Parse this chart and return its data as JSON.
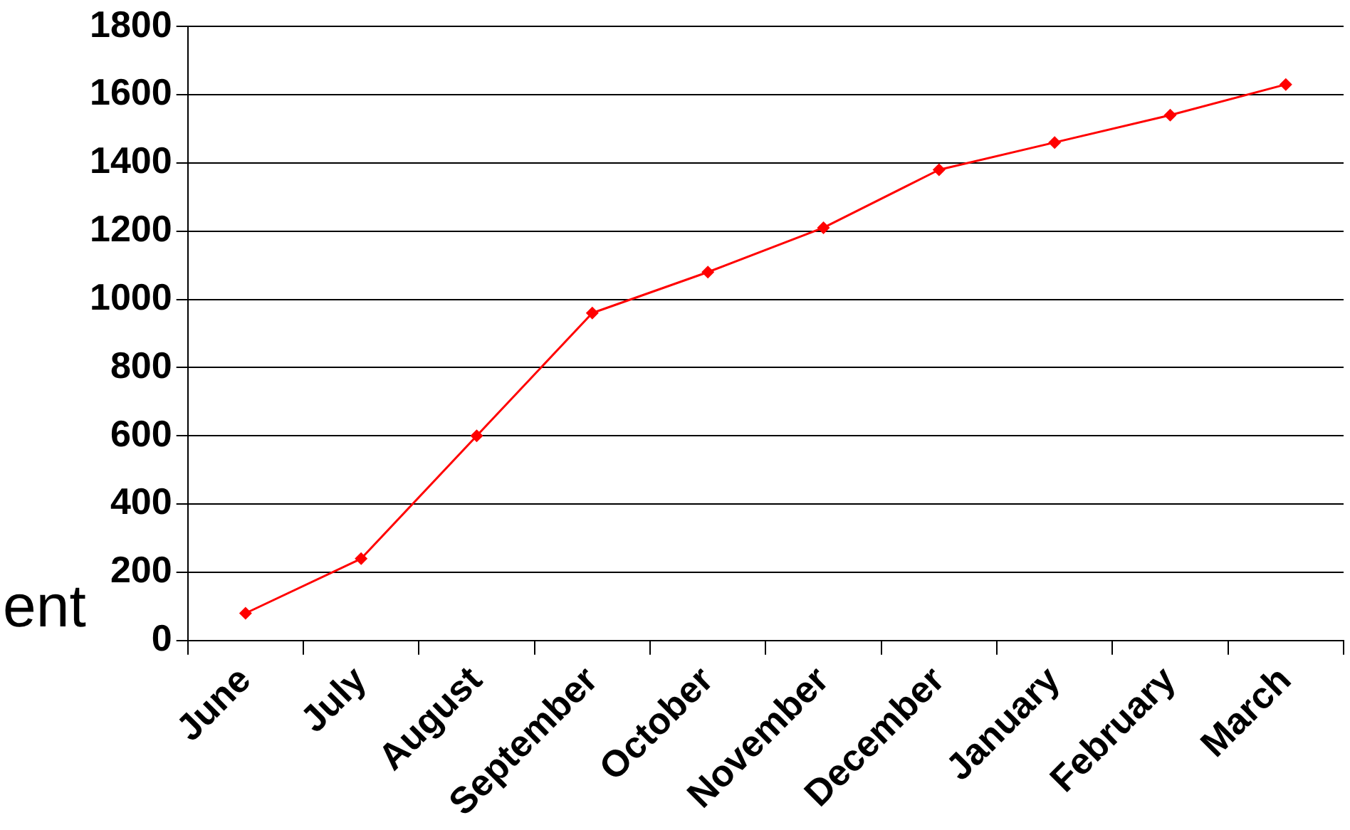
{
  "chart_data": {
    "type": "line",
    "categories": [
      "June",
      "July",
      "August",
      "September",
      "October",
      "November",
      "December",
      "January",
      "February",
      "March"
    ],
    "series": [
      {
        "color": "#ff0000",
        "values": [
          80,
          240,
          600,
          960,
          1080,
          1210,
          1380,
          1460,
          1540,
          1630
        ]
      }
    ],
    "ylim": [
      0,
      1800
    ],
    "yticks": [
      0,
      200,
      400,
      600,
      800,
      1000,
      1200,
      1400,
      1600,
      1800
    ],
    "grid": "y",
    "legend": false,
    "marker": "diamond",
    "line_style": "solid",
    "annotations": [
      "ent"
    ]
  }
}
